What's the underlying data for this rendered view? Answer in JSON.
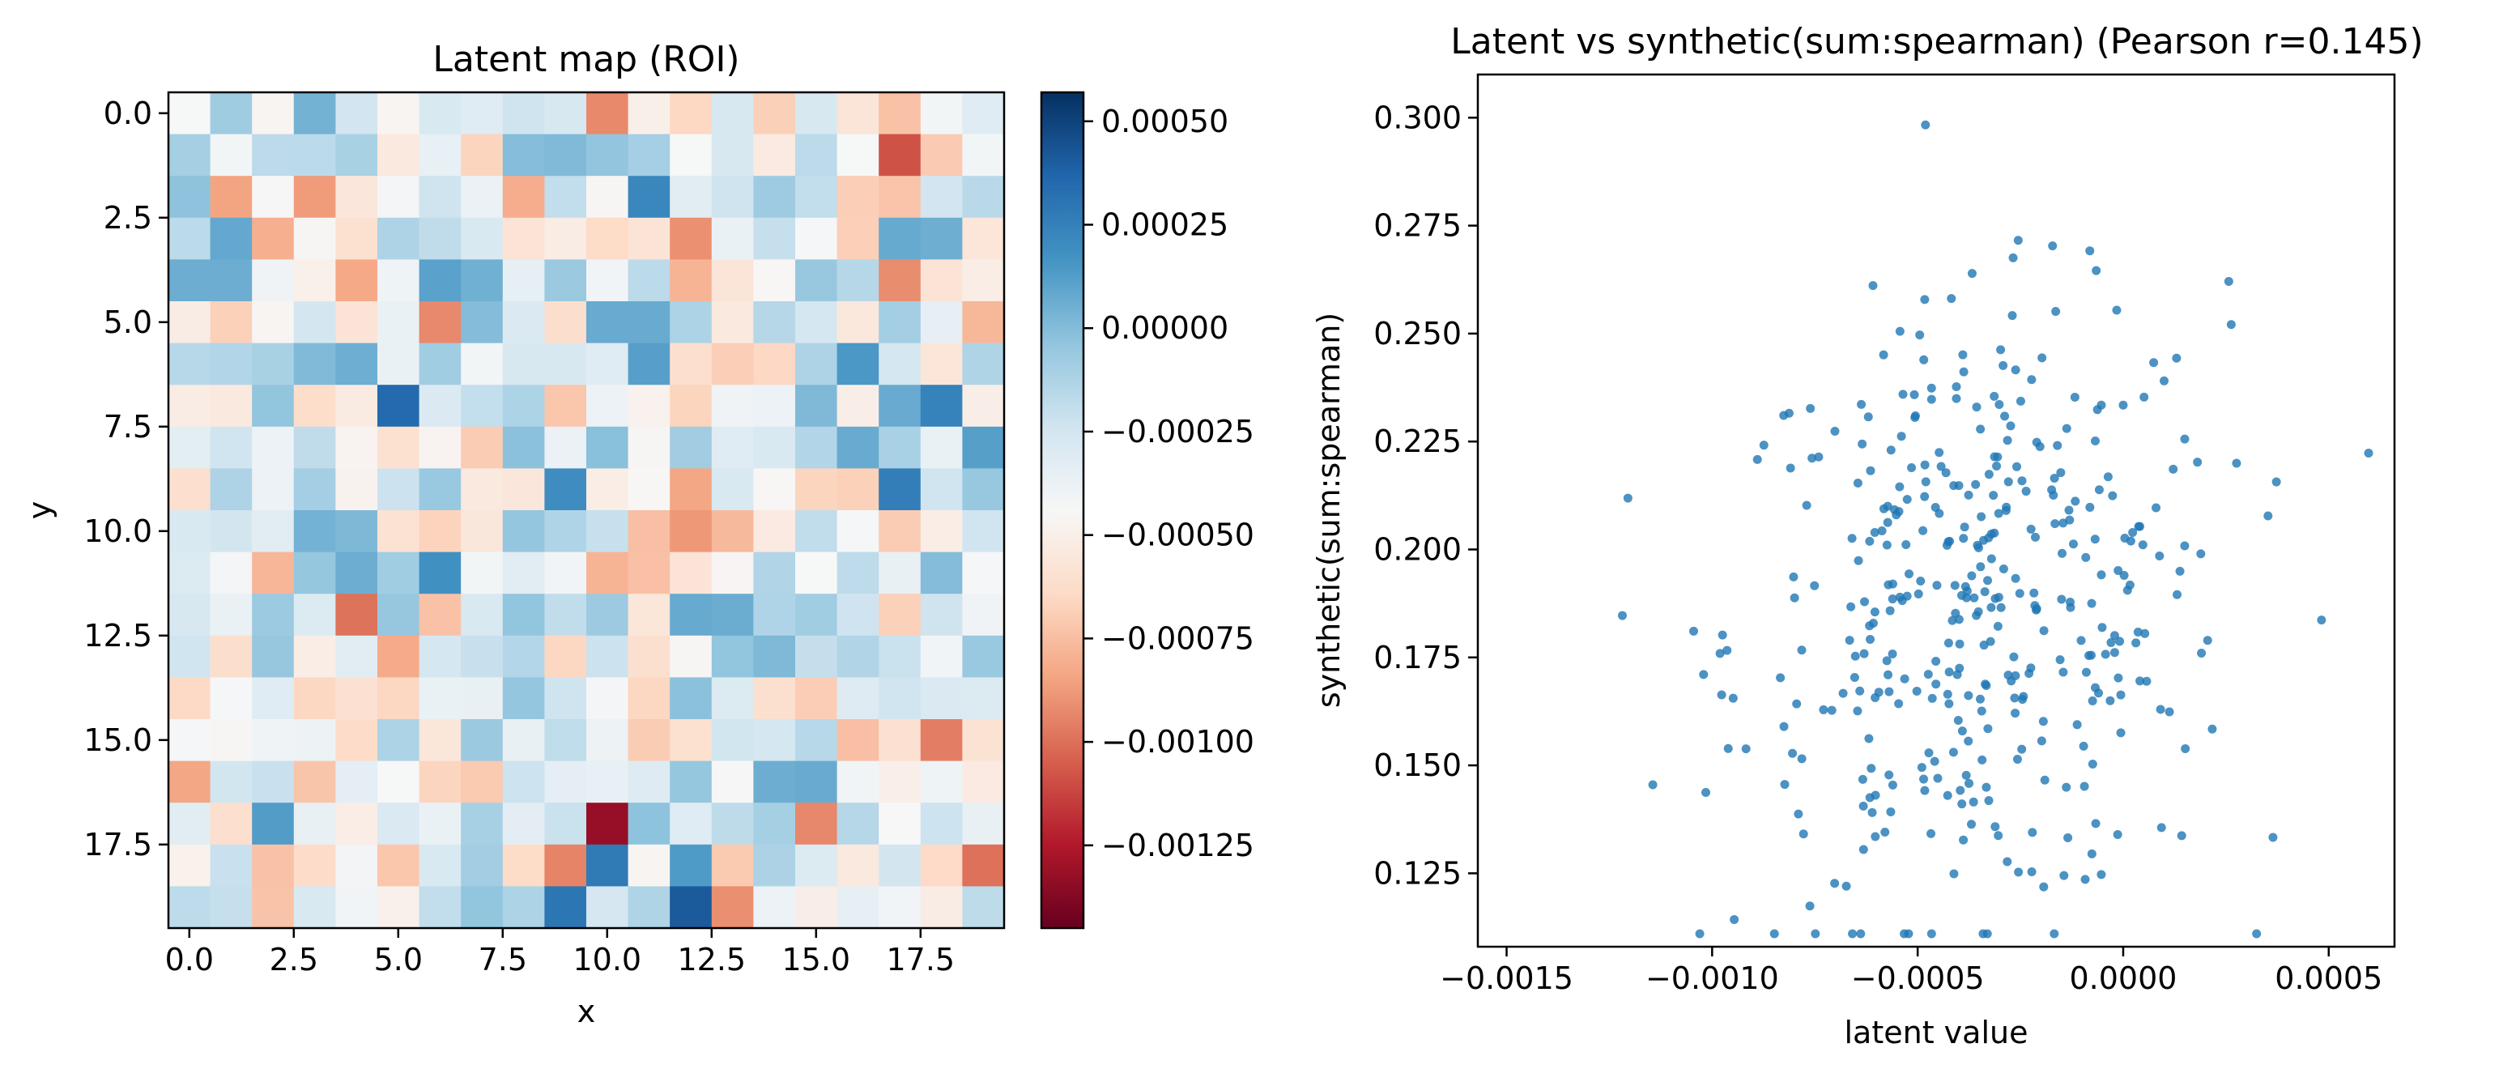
{
  "chart_data": [
    {
      "type": "heatmap",
      "title": "Latent map (ROI)",
      "xlabel": "x",
      "ylabel": "y",
      "x_ticks": [
        "0.0",
        "2.5",
        "5.0",
        "7.5",
        "10.0",
        "12.5",
        "15.0",
        "17.5"
      ],
      "y_ticks": [
        "0.0",
        "2.5",
        "5.0",
        "7.5",
        "10.0",
        "12.5",
        "15.0",
        "17.5"
      ],
      "colormap": "RdBu",
      "vmin": -0.00145,
      "vmax": 0.00057,
      "colorbar_ticks": [
        "0.00050",
        "0.00025",
        "0.00000",
        "−0.00025",
        "−0.00050",
        "−0.00075",
        "−0.00100",
        "−0.00125"
      ],
      "grid_size": [
        20,
        20
      ]
    },
    {
      "type": "scatter",
      "title": "Latent vs synthetic(sum:spearman) (Pearson r=0.145)",
      "xlabel": "latent value",
      "ylabel": "synthetic(sum:spearman)",
      "xlim": [
        -0.00157,
        0.00066
      ],
      "ylim": [
        0.108,
        0.31
      ],
      "x_ticks": [
        "−0.0015",
        "−0.0010",
        "−0.0005",
        "0.0000",
        "0.0005"
      ],
      "y_ticks": [
        "0.125",
        "0.150",
        "0.175",
        "0.200",
        "0.225",
        "0.250",
        "0.275",
        "0.300"
      ],
      "point_color": "#1f77b4",
      "n_points": 400
    }
  ]
}
